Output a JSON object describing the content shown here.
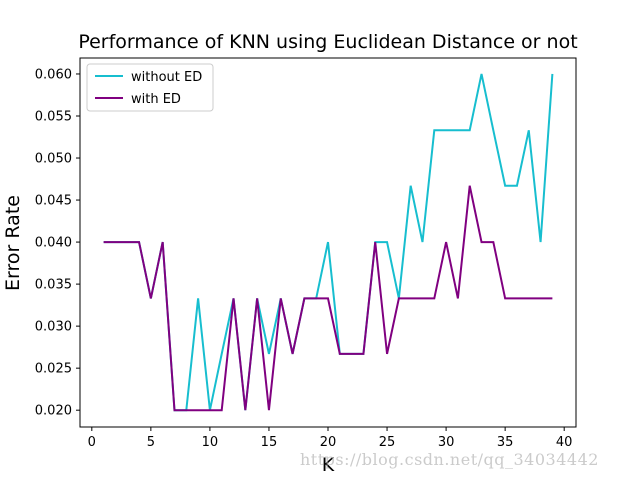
{
  "chart_data": {
    "type": "line",
    "title": "Performance of KNN using Euclidean Distance or not",
    "xlabel": "K",
    "ylabel": "Error Rate",
    "xlim": [
      -1,
      41
    ],
    "ylim": [
      0.018,
      0.0619
    ],
    "xticks": [
      0,
      5,
      10,
      15,
      20,
      25,
      30,
      35,
      40
    ],
    "yticks": [
      0.02,
      0.025,
      0.03,
      0.035,
      0.04,
      0.045,
      0.05,
      0.055,
      0.06
    ],
    "ytick_labels": [
      "0.020",
      "0.025",
      "0.030",
      "0.035",
      "0.040",
      "0.045",
      "0.050",
      "0.055",
      "0.060"
    ],
    "grid": false,
    "legend_position": "upper-left",
    "x": [
      1,
      2,
      3,
      4,
      5,
      6,
      7,
      8,
      9,
      10,
      11,
      12,
      13,
      14,
      15,
      16,
      17,
      18,
      19,
      20,
      21,
      22,
      23,
      24,
      25,
      26,
      27,
      28,
      29,
      30,
      31,
      32,
      33,
      34,
      35,
      36,
      37,
      38,
      39
    ],
    "series": [
      {
        "name": "without ED",
        "color": "#17becf",
        "values": [
          0.04,
          0.04,
          0.04,
          0.04,
          0.0333,
          0.04,
          0.02,
          0.02,
          0.0333,
          0.02,
          0.0267,
          0.0333,
          0.02,
          0.0333,
          0.0267,
          0.0333,
          0.0267,
          0.0333,
          0.0333,
          0.04,
          0.0267,
          0.0267,
          0.0267,
          0.04,
          0.04,
          0.0333,
          0.0467,
          0.04,
          0.0533,
          0.0533,
          0.0533,
          0.0533,
          0.06,
          0.0533,
          0.0467,
          0.0467,
          0.0533,
          0.04,
          0.06
        ]
      },
      {
        "name": "with ED",
        "color": "#800080",
        "values": [
          0.04,
          0.04,
          0.04,
          0.04,
          0.0333,
          0.04,
          0.02,
          0.02,
          0.02,
          0.02,
          0.02,
          0.0333,
          0.02,
          0.0333,
          0.02,
          0.0333,
          0.0267,
          0.0333,
          0.0333,
          0.0333,
          0.0267,
          0.0267,
          0.0267,
          0.04,
          0.0267,
          0.0333,
          0.0333,
          0.0333,
          0.0333,
          0.04,
          0.0333,
          0.0467,
          0.04,
          0.04,
          0.0333,
          0.0333,
          0.0333,
          0.0333,
          0.0333
        ]
      }
    ]
  },
  "watermark": "https://blog.csdn.net/qq_34034442"
}
